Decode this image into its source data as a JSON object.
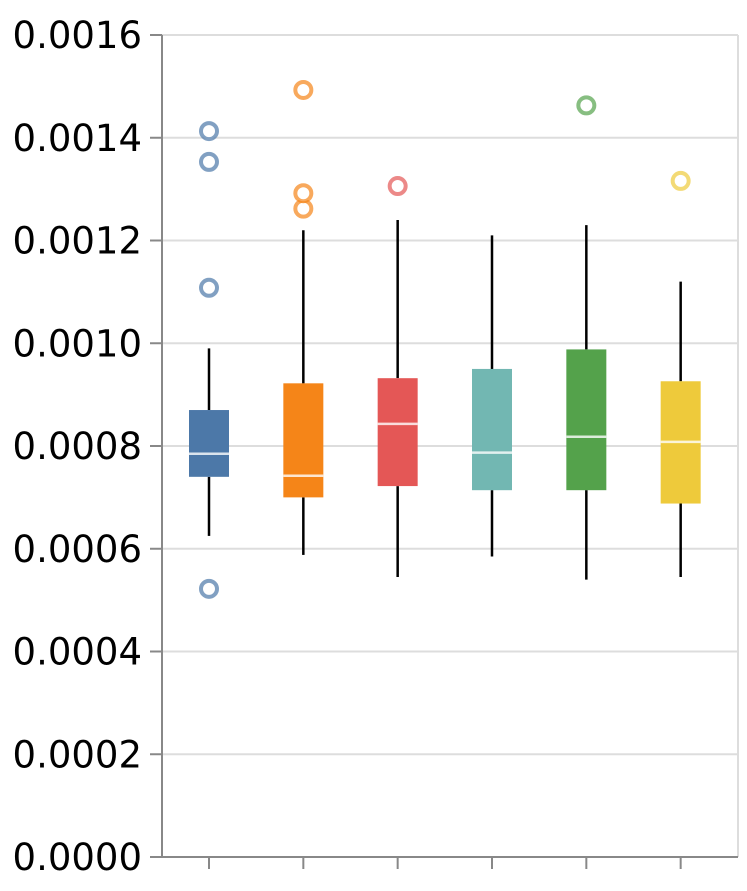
{
  "chart_data": {
    "type": "boxplot",
    "title": "",
    "xlabel": "",
    "ylabel": "",
    "ylim": [
      0,
      0.0016
    ],
    "y_ticks": [
      "0.0000",
      "0.0002",
      "0.0004",
      "0.0006",
      "0.0008",
      "0.0010",
      "0.0012",
      "0.0014",
      "0.0016"
    ],
    "grid": true,
    "boxes": [
      {
        "color": "#4c78a8",
        "min": 0.000625,
        "q1": 0.00074,
        "median": 0.000785,
        "q3": 0.00087,
        "max": 0.00099,
        "outliers": [
          0.000522,
          0.001108,
          0.001353,
          0.001413
        ]
      },
      {
        "color": "#f58518",
        "min": 0.000588,
        "q1": 0.0007,
        "median": 0.000742,
        "q3": 0.000922,
        "max": 0.00122,
        "outliers": [
          0.001262,
          0.001292,
          0.001493
        ]
      },
      {
        "color": "#e45756",
        "min": 0.000545,
        "q1": 0.000722,
        "median": 0.000843,
        "q3": 0.000932,
        "max": 0.00124,
        "outliers": [
          0.001306
        ]
      },
      {
        "color": "#72b7b2",
        "min": 0.000585,
        "q1": 0.000714,
        "median": 0.000787,
        "q3": 0.00095,
        "max": 0.00121,
        "outliers": []
      },
      {
        "color": "#54a24b",
        "min": 0.00054,
        "q1": 0.000714,
        "median": 0.000818,
        "q3": 0.000988,
        "max": 0.00123,
        "outliers": [
          0.001463
        ]
      },
      {
        "color": "#eeca3b",
        "min": 0.000545,
        "q1": 0.000688,
        "median": 0.000808,
        "q3": 0.000926,
        "max": 0.00112,
        "outliers": [
          0.001316
        ]
      }
    ]
  }
}
